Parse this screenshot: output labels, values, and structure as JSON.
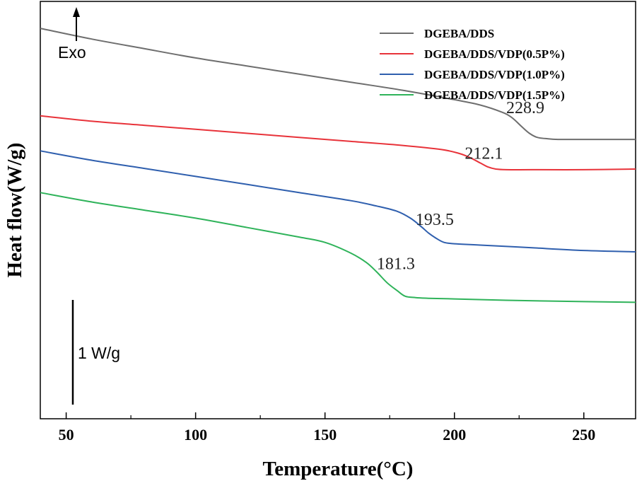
{
  "chart_data": {
    "type": "line",
    "title": "",
    "xlabel": "Temperature(°C)",
    "ylabel": "Heat flow(W/g)",
    "xlim": [
      40,
      270
    ],
    "ylim": [
      -1.75,
      1.35
    ],
    "x_ticks": [
      "50",
      "100",
      "150",
      "200",
      "250"
    ],
    "x_tick_values": [
      50,
      100,
      150,
      200,
      250
    ],
    "grid": false,
    "legend_position": "top-right",
    "exo_label": "Exo",
    "scale_bar_label": "1 W/g",
    "series": [
      {
        "name": "DGEBA/DDS",
        "color": "#6e6e6e",
        "x": [
          40,
          60,
          80,
          100,
          120,
          140,
          160,
          180,
          200,
          210,
          218,
          222,
          226,
          229,
          232,
          236,
          240,
          250,
          260,
          270
        ],
        "values": [
          1.15,
          1.07,
          1.0,
          0.93,
          0.87,
          0.81,
          0.75,
          0.69,
          0.62,
          0.58,
          0.53,
          0.49,
          0.42,
          0.37,
          0.34,
          0.33,
          0.325,
          0.325,
          0.325,
          0.325
        ]
      },
      {
        "name": "DGEBA/DDS/VDP(0.5P%)",
        "color": "#e8333a",
        "x": [
          40,
          60,
          80,
          100,
          120,
          140,
          160,
          180,
          195,
          202,
          206,
          210,
          213,
          216,
          220,
          230,
          250,
          270
        ],
        "values": [
          0.5,
          0.46,
          0.43,
          0.4,
          0.37,
          0.34,
          0.31,
          0.28,
          0.25,
          0.22,
          0.19,
          0.15,
          0.12,
          0.105,
          0.1,
          0.1,
          0.1,
          0.105
        ]
      },
      {
        "name": "DGEBA/DDS/VDP(1.0P%)",
        "color": "#2f5fae",
        "x": [
          40,
          60,
          80,
          100,
          120,
          140,
          160,
          170,
          178,
          183,
          187,
          190,
          193,
          196,
          200,
          210,
          230,
          250,
          270
        ],
        "values": [
          0.24,
          0.17,
          0.11,
          0.05,
          -0.01,
          -0.07,
          -0.13,
          -0.17,
          -0.21,
          -0.26,
          -0.32,
          -0.37,
          -0.41,
          -0.44,
          -0.45,
          -0.46,
          -0.48,
          -0.5,
          -0.51
        ]
      },
      {
        "name": "DGEBA/DDS/VDP(1.5P%)",
        "color": "#2fb35a",
        "x": [
          40,
          60,
          80,
          100,
          120,
          140,
          150,
          160,
          166,
          170,
          174,
          178,
          181,
          185,
          190,
          200,
          220,
          250,
          270
        ],
        "values": [
          -0.07,
          -0.14,
          -0.2,
          -0.26,
          -0.33,
          -0.4,
          -0.44,
          -0.52,
          -0.59,
          -0.66,
          -0.74,
          -0.8,
          -0.84,
          -0.85,
          -0.855,
          -0.86,
          -0.87,
          -0.88,
          -0.885
        ]
      }
    ],
    "annotations": [
      {
        "text": "228.9",
        "x": 220,
        "y": 0.52,
        "color": "#222222"
      },
      {
        "text": "212.1",
        "x": 204,
        "y": 0.18,
        "color": "#222222"
      },
      {
        "text": "193.5",
        "x": 185,
        "y": -0.31,
        "color": "#222222"
      },
      {
        "text": "181.3",
        "x": 170,
        "y": -0.64,
        "color": "#222222"
      }
    ]
  }
}
